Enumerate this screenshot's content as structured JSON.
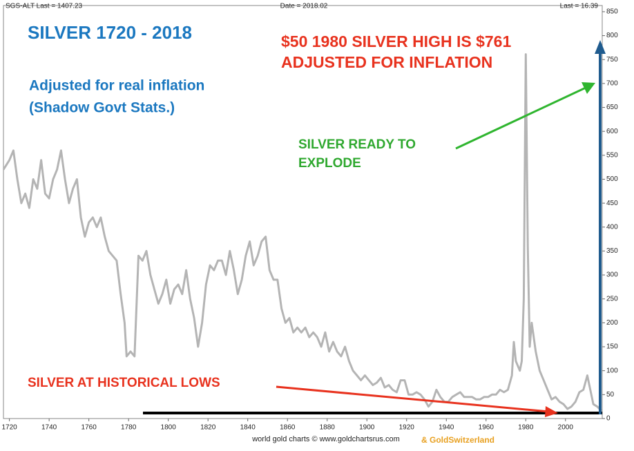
{
  "chart_data": {
    "type": "line",
    "header_left": "SGS-ALT Last = 1407.23",
    "header_center": "Date = 2018.02",
    "header_right": "Last = 16.39",
    "title": "SILVER 1720 - 2018",
    "subtitle": [
      "Adjusted for real inflation",
      "(Shadow Govt Stats.)"
    ],
    "annotations": {
      "high": [
        "$50 1980 SILVER HIGH IS $761",
        "ADJUSTED FOR INFLATION"
      ],
      "explode": [
        "SILVER READY TO",
        "EXPLODE"
      ],
      "lows": "SILVER AT HISTORICAL LOWS"
    },
    "footer": "world gold charts © www.goldchartsrus.com",
    "footer_brand": "& GoldSwitzerland",
    "x": [
      1717,
      1720,
      1722,
      1724,
      1726,
      1728,
      1730,
      1732,
      1734,
      1736,
      1738,
      1740,
      1742,
      1744,
      1746,
      1748,
      1750,
      1752,
      1754,
      1756,
      1758,
      1760,
      1762,
      1764,
      1766,
      1768,
      1770,
      1772,
      1774,
      1776,
      1778,
      1779,
      1781,
      1783,
      1785,
      1787,
      1789,
      1791,
      1793,
      1795,
      1797,
      1799,
      1801,
      1803,
      1805,
      1807,
      1809,
      1811,
      1813,
      1815,
      1817,
      1819,
      1821,
      1823,
      1825,
      1827,
      1829,
      1831,
      1833,
      1835,
      1837,
      1839,
      1841,
      1843,
      1845,
      1847,
      1849,
      1851,
      1853,
      1855,
      1857,
      1859,
      1861,
      1863,
      1865,
      1867,
      1869,
      1871,
      1873,
      1875,
      1877,
      1879,
      1881,
      1883,
      1885,
      1887,
      1889,
      1891,
      1893,
      1895,
      1897,
      1899,
      1901,
      1903,
      1905,
      1907,
      1909,
      1911,
      1913,
      1915,
      1917,
      1919,
      1921,
      1923,
      1925,
      1927,
      1929,
      1931,
      1933,
      1935,
      1937,
      1939,
      1941,
      1943,
      1945,
      1947,
      1949,
      1951,
      1953,
      1955,
      1957,
      1959,
      1961,
      1963,
      1965,
      1967,
      1969,
      1971,
      1973,
      1974,
      1975,
      1977,
      1978,
      1979,
      1980,
      1981,
      1982,
      1983,
      1985,
      1987,
      1989,
      1991,
      1993,
      1995,
      1997,
      1999,
      2001,
      2003,
      2005,
      2007,
      2009,
      2011,
      2012,
      2014,
      2016,
      2018
    ],
    "series": [
      {
        "name": "SGS-ALT",
        "color": "#b4b4b4",
        "values": [
          520,
          540,
          560,
          500,
          450,
          470,
          440,
          500,
          480,
          540,
          470,
          460,
          500,
          520,
          560,
          500,
          450,
          480,
          500,
          420,
          380,
          410,
          420,
          400,
          420,
          380,
          350,
          340,
          330,
          260,
          200,
          130,
          140,
          130,
          340,
          330,
          350,
          300,
          270,
          240,
          260,
          290,
          240,
          270,
          280,
          260,
          310,
          250,
          210,
          150,
          200,
          280,
          320,
          310,
          330,
          330,
          300,
          350,
          310,
          260,
          290,
          340,
          370,
          320,
          340,
          370,
          380,
          310,
          290,
          290,
          230,
          200,
          210,
          180,
          190,
          180,
          190,
          170,
          180,
          170,
          150,
          180,
          140,
          160,
          140,
          130,
          150,
          120,
          100,
          90,
          80,
          90,
          80,
          70,
          75,
          85,
          65,
          70,
          60,
          55,
          80,
          80,
          50,
          50,
          55,
          50,
          40,
          25,
          35,
          60,
          45,
          35,
          35,
          45,
          50,
          55,
          45,
          45,
          45,
          40,
          40,
          45,
          45,
          50,
          50,
          60,
          55,
          60,
          90,
          160,
          120,
          100,
          120,
          250,
          761,
          360,
          150,
          200,
          140,
          100,
          80,
          60,
          40,
          45,
          35,
          30,
          20,
          25,
          35,
          55,
          60,
          90,
          70,
          30,
          25,
          16.39
        ]
      }
    ],
    "xlim": [
      1717,
      2018.5
    ],
    "xticks": [
      1720,
      1740,
      1760,
      1780,
      1800,
      1820,
      1840,
      1860,
      1880,
      1900,
      1920,
      1940,
      1960,
      1980,
      2000
    ],
    "ylim": [
      0,
      860
    ],
    "yticks": [
      0,
      50,
      100,
      150,
      200,
      250,
      300,
      350,
      400,
      450,
      500,
      550,
      600,
      650,
      700,
      750,
      800,
      850
    ]
  }
}
